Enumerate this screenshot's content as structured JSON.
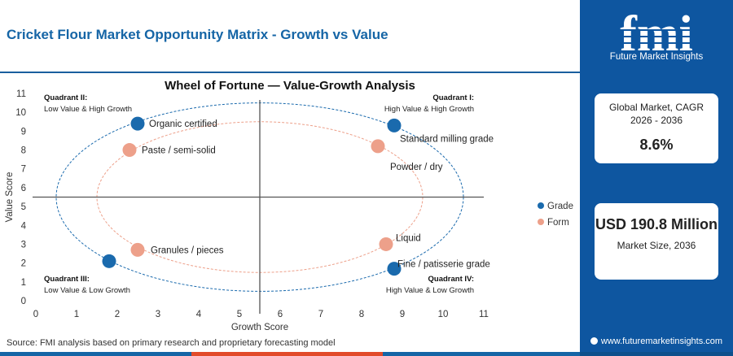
{
  "header": {
    "title": "Cricket Flour Market Opportunity Matrix - Growth vs Value"
  },
  "chart_data": {
    "type": "scatter",
    "title": "Wheel of Fortune — Value-Growth Analysis",
    "xlabel": "Growth Score",
    "ylabel": "Value Score",
    "xlim": [
      0,
      11
    ],
    "ylim": [
      0,
      11
    ],
    "xticks": [
      "0",
      "1",
      "2",
      "3",
      "4",
      "5",
      "6",
      "7",
      "8",
      "9",
      "10",
      "11"
    ],
    "yticks": [
      "0",
      "1",
      "2",
      "3",
      "4",
      "5",
      "6",
      "7",
      "8",
      "9",
      "10",
      "11"
    ],
    "divider": {
      "x": 5.5,
      "y": 5.5
    },
    "grid": false,
    "legend_position": "right",
    "series": [
      {
        "name": "Grade",
        "color": "#1a6aad",
        "points": [
          {
            "label": "Organic certified",
            "x": 2.5,
            "y": 9.4
          },
          {
            "label": "Standard milling grade",
            "x": 8.8,
            "y": 9.3
          },
          {
            "label": "Fine / patisserie grade",
            "x": 8.8,
            "y": 1.7
          },
          {
            "label": "",
            "x": 1.8,
            "y": 2.1
          }
        ]
      },
      {
        "name": "Form",
        "color": "#eda08a",
        "points": [
          {
            "label": "Paste / semi-solid",
            "x": 2.3,
            "y": 8.0
          },
          {
            "label": "Powder / dry",
            "x": 8.4,
            "y": 8.2
          },
          {
            "label": "Granules / pieces",
            "x": 2.5,
            "y": 2.7
          },
          {
            "label": "Liquid",
            "x": 8.6,
            "y": 3.0
          }
        ]
      }
    ],
    "quadrants": [
      {
        "title": "Quadrant II:",
        "subtitle": "Low Value & High Growth",
        "position": "top-left"
      },
      {
        "title": "Quadrant I:",
        "subtitle": "High Value & High Growth",
        "position": "top-right"
      },
      {
        "title": "Quadrant III:",
        "subtitle": "Low Value & Low Growth",
        "position": "bottom-left"
      },
      {
        "title": "Quadrant IV:",
        "subtitle": "High Value & Low Growth",
        "position": "bottom-right"
      }
    ],
    "ellipses": [
      {
        "cx": 5.5,
        "cy": 5.5,
        "rx": 5.0,
        "ry": 5.0,
        "color": "#1a6aad"
      },
      {
        "cx": 5.5,
        "cy": 5.5,
        "rx": 4.0,
        "ry": 4.0,
        "color": "#eda08a"
      }
    ]
  },
  "source": "Source: FMI analysis based on primary research and proprietary forecasting model",
  "sidebar": {
    "logo_text": "fmi",
    "logo_subtitle": "Future Market Insights",
    "cagr_label": "Global Market, CAGR 2026 - 2036",
    "cagr_value": "8.6%",
    "size_value": "USD 190.8 Million",
    "size_label": "Market Size, 2036",
    "website": "www.futuremarketinsights.com"
  }
}
